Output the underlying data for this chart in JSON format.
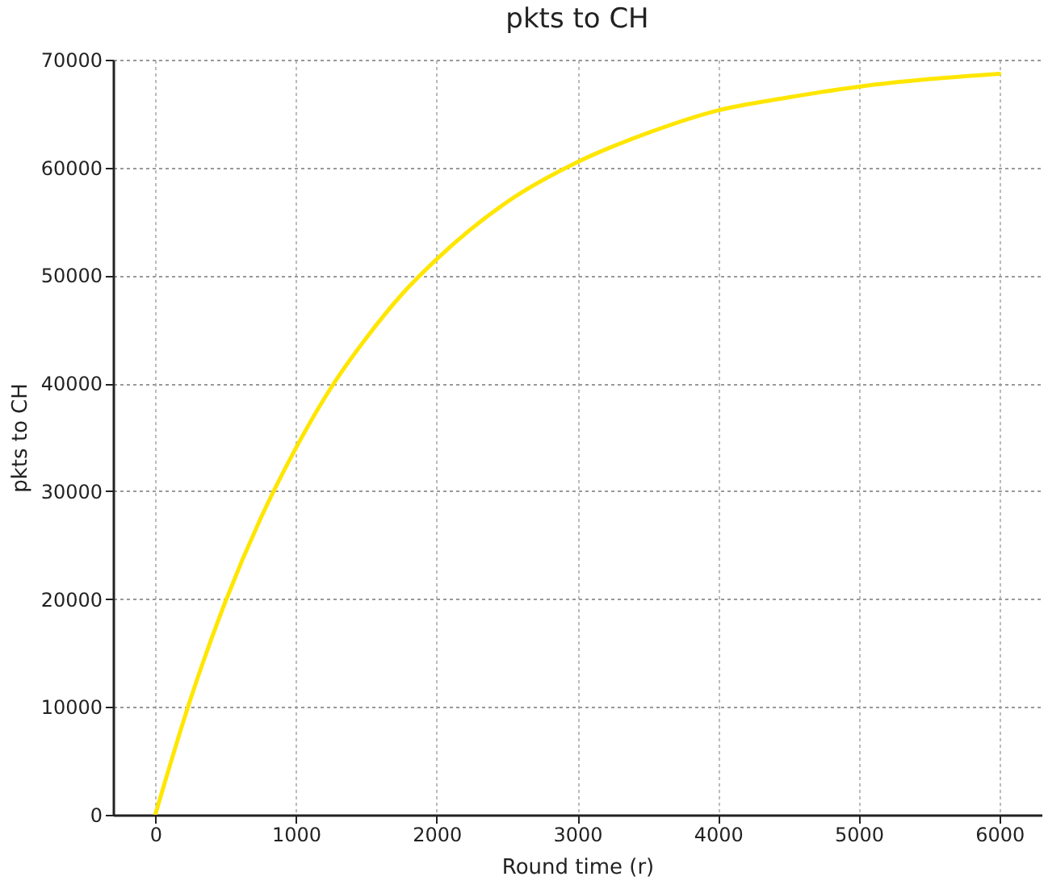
{
  "chart_data": {
    "type": "line",
    "title": "pkts to CH",
    "xlabel": "Round time (r)",
    "ylabel": "pkts to CH",
    "x": [
      0,
      250,
      500,
      750,
      1000,
      1250,
      1500,
      1750,
      2000,
      2500,
      3000,
      3500,
      4000,
      4500,
      5000,
      5500,
      6000
    ],
    "series": [
      {
        "color": "#ffe600",
        "values": [
          0,
          10700,
          19800,
          27500,
          34000,
          39600,
          44200,
          48200,
          51500,
          56800,
          60500,
          63200,
          65300,
          66500,
          67500,
          68200,
          68700
        ]
      }
    ],
    "xlim": [
      -300,
      6300
    ],
    "xticks": [
      0,
      1000,
      2000,
      3000,
      4000,
      5000,
      6000
    ],
    "ylim": [
      0,
      70000
    ],
    "yticks": [
      0,
      10000,
      20000,
      30000,
      40000,
      50000,
      60000,
      70000
    ],
    "grid": true,
    "marker": "none",
    "line_style": "solid"
  }
}
